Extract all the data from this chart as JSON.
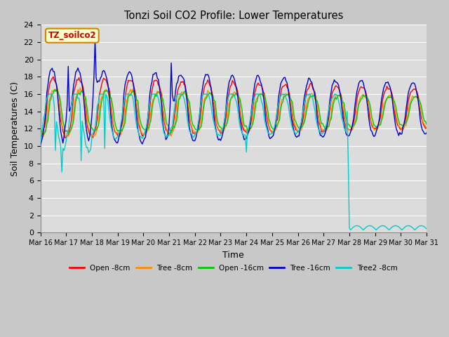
{
  "title": "Tonzi Soil CO2 Profile: Lower Temperatures",
  "xlabel": "Time",
  "ylabel": "Soil Temperatures (C)",
  "ylim": [
    0,
    24
  ],
  "yticks": [
    0,
    2,
    4,
    6,
    8,
    10,
    12,
    14,
    16,
    18,
    20,
    22,
    24
  ],
  "xlim": [
    0,
    360
  ],
  "xtick_labels": [
    "Mar 16",
    "Mar 17",
    "Mar 18",
    "Mar 19",
    "Mar 20",
    "Mar 21",
    "Mar 22",
    "Mar 23",
    "Mar 24",
    "Mar 25",
    "Mar 26",
    "Mar 27",
    "Mar 28",
    "Mar 29",
    "Mar 30",
    "Mar 31"
  ],
  "xtick_positions": [
    0,
    24,
    48,
    72,
    96,
    120,
    144,
    168,
    192,
    216,
    240,
    264,
    288,
    312,
    336,
    360
  ],
  "colors": {
    "open_8cm": "#FF0000",
    "tree_8cm": "#FF8C00",
    "open_16cm": "#00CC00",
    "tree_16cm": "#0000CC",
    "tree2_8cm": "#00CCCC"
  },
  "series_labels": [
    "Open -8cm",
    "Tree -8cm",
    "Open -16cm",
    "Tree -16cm",
    "Tree2 -8cm"
  ],
  "legend_box_color": "#FFFFCC",
  "legend_box_edge": "#CC8800",
  "legend_text_color": "#CC0000",
  "legend_text": "TZ_soilco2",
  "background_color": "#DCDCDC",
  "grid_color": "#FFFFFF"
}
